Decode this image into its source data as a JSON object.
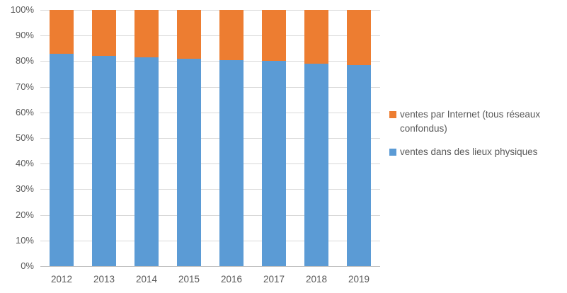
{
  "chart_data": {
    "type": "bar",
    "stacked": true,
    "title": "",
    "xlabel": "",
    "ylabel": "",
    "categories": [
      "2012",
      "2013",
      "2014",
      "2015",
      "2016",
      "2017",
      "2018",
      "2019"
    ],
    "series": [
      {
        "name": "ventes dans des lieux physiques",
        "color": "#5B9BD5",
        "values": [
          83,
          82,
          81.5,
          81,
          80.4,
          80,
          79,
          78.5
        ]
      },
      {
        "name": "ventes par Internet (tous réseaux confondus)",
        "color": "#ED7D31",
        "values": [
          17,
          18,
          18.5,
          19,
          19.6,
          20,
          21,
          21.5
        ]
      }
    ],
    "ylim": [
      0,
      100
    ],
    "y_tick_step": 10,
    "y_tick_labels": [
      "0%",
      "10%",
      "20%",
      "30%",
      "40%",
      "50%",
      "60%",
      "70%",
      "80%",
      "90%",
      "100%"
    ],
    "grid": true,
    "legend_position": "right"
  },
  "legend": {
    "items": [
      {
        "label": "ventes par Internet (tous réseaux confondus)",
        "color": "#ED7D31"
      },
      {
        "label": "ventes dans des lieux physiques",
        "color": "#5B9BD5"
      }
    ]
  },
  "colors": {
    "gridline": "#D9D9D9",
    "axis_line": "#BFBFBF",
    "tick_text": "#595959",
    "background": "#FFFFFF"
  }
}
